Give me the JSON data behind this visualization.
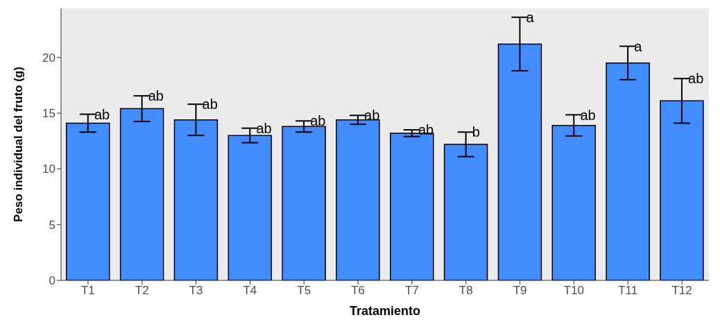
{
  "chart_data": {
    "type": "bar",
    "xlabel": "Tratamiento",
    "ylabel": "Peso individual del fruto (g)",
    "categories": [
      "T1",
      "T2",
      "T3",
      "T4",
      "T5",
      "T6",
      "T7",
      "T8",
      "T9",
      "T10",
      "T11",
      "T12"
    ],
    "values": [
      14.1,
      15.4,
      14.4,
      13.0,
      13.8,
      14.4,
      13.2,
      12.2,
      21.2,
      13.9,
      19.5,
      16.1
    ],
    "errors": [
      0.8,
      1.15,
      1.4,
      0.65,
      0.5,
      0.4,
      0.3,
      1.1,
      2.4,
      0.95,
      1.5,
      2.0
    ],
    "color": "#418cff",
    "ylim": [
      0,
      24.4
    ],
    "yticks": [
      0,
      5,
      10,
      15,
      20
    ],
    "annotations": [
      {
        "text": "ab",
        "x": "T1",
        "y": 14.9
      },
      {
        "text": "ab",
        "x": "T2",
        "y": 16.55
      },
      {
        "text": "ab",
        "x": "T3",
        "y": 15.8
      },
      {
        "text": "ab",
        "x": "T4",
        "y": 13.65
      },
      {
        "text": "ab",
        "x": "T5",
        "y": 14.3
      },
      {
        "text": "ab",
        "x": "T6",
        "y": 14.8
      },
      {
        "text": "ab",
        "x": "T7",
        "y": 13.5
      },
      {
        "text": "b",
        "x": "T8",
        "y": 13.3
      },
      {
        "text": "a",
        "x": "T9",
        "y": 23.6
      },
      {
        "text": "ab",
        "x": "T10",
        "y": 14.85
      },
      {
        "text": "a",
        "x": "T11",
        "y": 21.0
      },
      {
        "text": "ab",
        "x": "T12",
        "y": 18.1
      }
    ]
  }
}
